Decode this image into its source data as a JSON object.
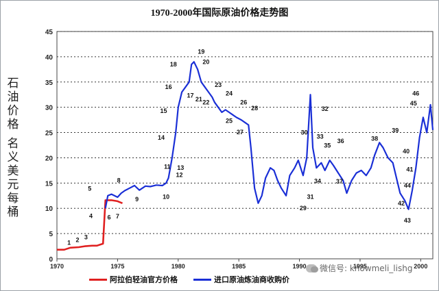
{
  "chart_data": {
    "type": "line",
    "title": "1970-2000年国际原油价格走势图",
    "ylabel": [
      "石油价格",
      "名义美元每桶"
    ],
    "xlabel": "",
    "xlim": [
      1970,
      2001
    ],
    "ylim": [
      0,
      45
    ],
    "x_ticks": [
      "1970",
      "1975",
      "1980",
      "1985",
      "1990",
      "1995",
      "2000"
    ],
    "y_ticks": [
      "0",
      "5",
      "10",
      "15",
      "20",
      "25",
      "30",
      "35",
      "40",
      "45"
    ],
    "grid": true,
    "legend_position": "bottom",
    "series": [
      {
        "name": "阿拉伯轻油官方价格",
        "color": "#e02020",
        "points": [
          [
            1970.0,
            1.8
          ],
          [
            1970.6,
            1.8
          ],
          [
            1971.1,
            2.2
          ],
          [
            1971.8,
            2.3
          ],
          [
            1972.3,
            2.5
          ],
          [
            1972.9,
            2.6
          ],
          [
            1973.3,
            2.6
          ],
          [
            1973.8,
            3.0
          ],
          [
            1974.0,
            11.6
          ],
          [
            1974.5,
            11.6
          ],
          [
            1975.0,
            11.4
          ],
          [
            1975.4,
            11.0
          ]
        ]
      },
      {
        "name": "进口原油炼油商收购价",
        "color": "#1a2fd6",
        "points": [
          [
            1974.0,
            10.0
          ],
          [
            1974.2,
            12.5
          ],
          [
            1974.5,
            12.8
          ],
          [
            1975.0,
            12.2
          ],
          [
            1975.3,
            13.0
          ],
          [
            1975.6,
            13.5
          ],
          [
            1976.0,
            14.0
          ],
          [
            1976.4,
            14.5
          ],
          [
            1976.8,
            13.6
          ],
          [
            1977.3,
            14.4
          ],
          [
            1977.7,
            14.3
          ],
          [
            1978.2,
            14.6
          ],
          [
            1978.7,
            14.5
          ],
          [
            1979.0,
            15.0
          ],
          [
            1979.2,
            16.0
          ],
          [
            1979.5,
            20.0
          ],
          [
            1979.8,
            25.0
          ],
          [
            1980.0,
            30.0
          ],
          [
            1980.3,
            33.0
          ],
          [
            1980.6,
            34.0
          ],
          [
            1980.9,
            35.0
          ],
          [
            1981.1,
            38.5
          ],
          [
            1981.3,
            39.0
          ],
          [
            1981.6,
            37.5
          ],
          [
            1981.9,
            35.0
          ],
          [
            1982.2,
            34.0
          ],
          [
            1982.5,
            33.0
          ],
          [
            1982.8,
            32.0
          ],
          [
            1983.0,
            31.0
          ],
          [
            1983.3,
            30.0
          ],
          [
            1983.6,
            29.0
          ],
          [
            1983.9,
            29.5
          ],
          [
            1984.2,
            29.0
          ],
          [
            1984.5,
            28.5
          ],
          [
            1984.8,
            28.0
          ],
          [
            1985.2,
            27.5
          ],
          [
            1985.5,
            27.0
          ],
          [
            1985.8,
            26.5
          ],
          [
            1986.0,
            22.0
          ],
          [
            1986.3,
            14.0
          ],
          [
            1986.6,
            11.0
          ],
          [
            1986.9,
            12.5
          ],
          [
            1987.2,
            16.0
          ],
          [
            1987.6,
            18.0
          ],
          [
            1987.9,
            17.5
          ],
          [
            1988.2,
            15.5
          ],
          [
            1988.5,
            14.0
          ],
          [
            1988.9,
            12.5
          ],
          [
            1989.2,
            16.5
          ],
          [
            1989.6,
            18.0
          ],
          [
            1989.9,
            19.5
          ],
          [
            1990.3,
            16.5
          ],
          [
            1990.6,
            20.0
          ],
          [
            1990.9,
            32.5
          ],
          [
            1991.1,
            22.0
          ],
          [
            1991.4,
            18.0
          ],
          [
            1991.8,
            19.0
          ],
          [
            1992.1,
            17.5
          ],
          [
            1992.5,
            19.5
          ],
          [
            1992.8,
            18.5
          ],
          [
            1993.2,
            17.0
          ],
          [
            1993.6,
            15.5
          ],
          [
            1993.9,
            13.0
          ],
          [
            1994.3,
            15.5
          ],
          [
            1994.7,
            17.0
          ],
          [
            1995.1,
            17.5
          ],
          [
            1995.5,
            16.5
          ],
          [
            1995.9,
            18.0
          ],
          [
            1996.2,
            20.5
          ],
          [
            1996.6,
            23.0
          ],
          [
            1996.9,
            22.0
          ],
          [
            1997.3,
            20.0
          ],
          [
            1997.7,
            19.0
          ],
          [
            1998.0,
            16.0
          ],
          [
            1998.3,
            13.0
          ],
          [
            1998.7,
            11.5
          ],
          [
            1999.0,
            9.8
          ],
          [
            1999.3,
            13.5
          ],
          [
            1999.6,
            18.0
          ],
          [
            1999.9,
            24.0
          ],
          [
            2000.2,
            28.0
          ],
          [
            2000.5,
            25.0
          ],
          [
            2000.8,
            30.5
          ],
          [
            2001.0,
            25.5
          ]
        ]
      }
    ],
    "annotations": [
      {
        "label": "1",
        "x": 1971.0,
        "y": 3.2
      },
      {
        "label": "2",
        "x": 1971.7,
        "y": 3.7
      },
      {
        "label": "3",
        "x": 1972.4,
        "y": 4.3
      },
      {
        "label": "4",
        "x": 1972.8,
        "y": 8.5
      },
      {
        "label": "5",
        "x": 1972.7,
        "y": 13.9
      },
      {
        "label": "6",
        "x": 1974.3,
        "y": 8.2
      },
      {
        "label": "7",
        "x": 1975.0,
        "y": 8.4
      },
      {
        "label": "8",
        "x": 1975.1,
        "y": 15.5
      },
      {
        "label": "9",
        "x": 1976.6,
        "y": 11.8
      },
      {
        "label": "10",
        "x": 1979.0,
        "y": 12.3
      },
      {
        "label": "11",
        "x": 1979.1,
        "y": 18.2
      },
      {
        "label": "12",
        "x": 1980.1,
        "y": 16.6
      },
      {
        "label": "13",
        "x": 1980.2,
        "y": 18.0
      },
      {
        "label": "14",
        "x": 1978.6,
        "y": 24.0
      },
      {
        "label": "15",
        "x": 1978.8,
        "y": 29.3
      },
      {
        "label": "16",
        "x": 1979.2,
        "y": 34.0
      },
      {
        "label": "17",
        "x": 1981.0,
        "y": 32.3
      },
      {
        "label": "18",
        "x": 1979.6,
        "y": 38.5
      },
      {
        "label": "19",
        "x": 1981.9,
        "y": 41.0
      },
      {
        "label": "20",
        "x": 1982.3,
        "y": 39.0
      },
      {
        "label": "21",
        "x": 1981.7,
        "y": 31.6
      },
      {
        "label": "22",
        "x": 1982.3,
        "y": 31.0
      },
      {
        "label": "23",
        "x": 1983.3,
        "y": 34.4
      },
      {
        "label": "24",
        "x": 1984.2,
        "y": 32.7
      },
      {
        "label": "25",
        "x": 1984.2,
        "y": 27.3
      },
      {
        "label": "26",
        "x": 1985.4,
        "y": 31.0
      },
      {
        "label": "27",
        "x": 1985.1,
        "y": 25.1
      },
      {
        "label": "28",
        "x": 1986.3,
        "y": 29.8
      },
      {
        "label": "29",
        "x": 1990.3,
        "y": 10.0
      },
      {
        "label": "30",
        "x": 1990.4,
        "y": 25.0
      },
      {
        "label": "31",
        "x": 1990.9,
        "y": 12.3
      },
      {
        "label": "32",
        "x": 1992.1,
        "y": 29.7
      },
      {
        "label": "33",
        "x": 1991.7,
        "y": 24.2
      },
      {
        "label": "34",
        "x": 1991.5,
        "y": 15.4
      },
      {
        "label": "35",
        "x": 1992.3,
        "y": 22.4
      },
      {
        "label": "36",
        "x": 1993.4,
        "y": 23.3
      },
      {
        "label": "37",
        "x": 1993.3,
        "y": 15.3
      },
      {
        "label": "38",
        "x": 1996.2,
        "y": 23.8
      },
      {
        "label": "39",
        "x": 1997.9,
        "y": 25.4
      },
      {
        "label": "40",
        "x": 1998.8,
        "y": 21.3
      },
      {
        "label": "41",
        "x": 1999.1,
        "y": 17.7
      },
      {
        "label": "42",
        "x": 1998.4,
        "y": 11.0
      },
      {
        "label": "43",
        "x": 1998.9,
        "y": 7.6
      },
      {
        "label": "44",
        "x": 1998.9,
        "y": 14.5
      },
      {
        "label": "45",
        "x": 1999.4,
        "y": 30.8
      },
      {
        "label": "46",
        "x": 1999.6,
        "y": 32.7
      }
    ]
  },
  "watermark": "微信号: knowmeli_lishg"
}
